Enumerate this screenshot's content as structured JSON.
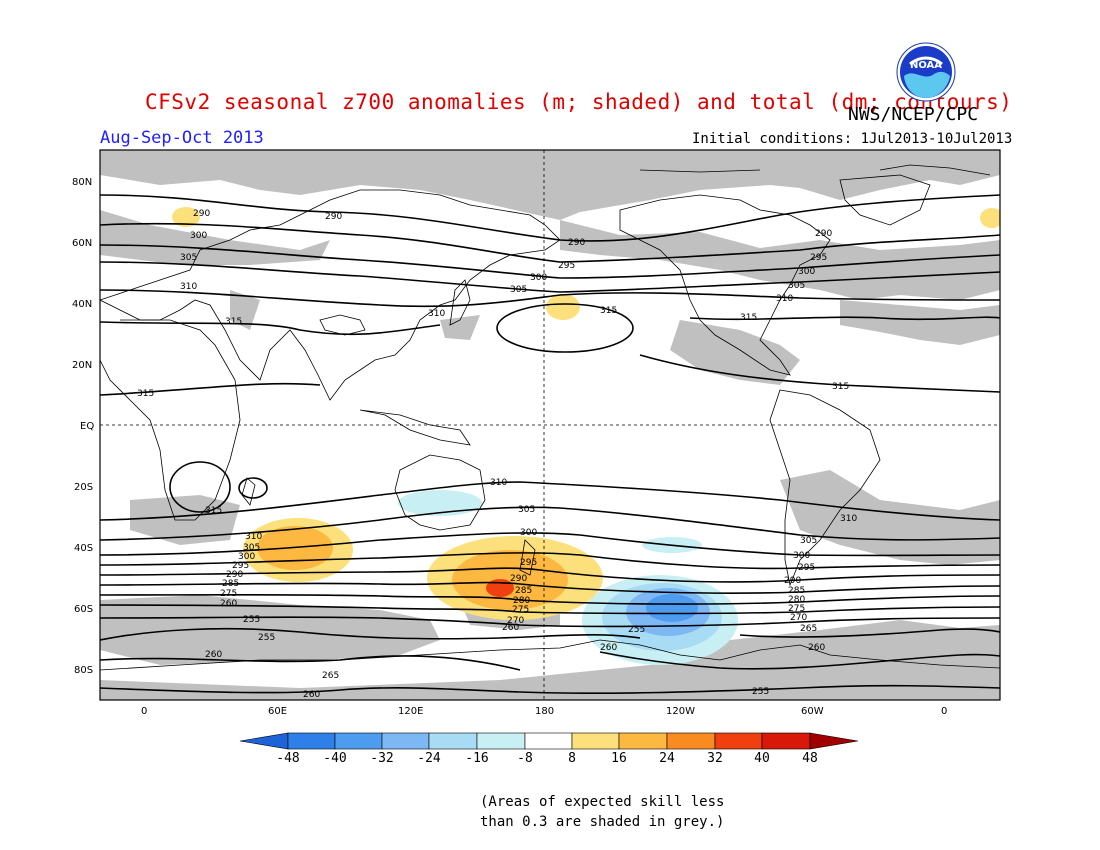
{
  "title": "CFSv2 seasonal z700 anomalies (m; shaded) and total (dm; contours)",
  "agency": "NWS/NCEP/CPC",
  "period": "Aug-Sep-Oct 2013",
  "initial_conditions": "Initial conditions: 1Jul2013-10Jul2013",
  "logo_text": "NOAA",
  "map": {
    "lon_ticks": [
      "0",
      "60E",
      "120E",
      "180",
      "120W",
      "60W",
      "0"
    ],
    "lat_ticks": [
      "80N",
      "60N",
      "40N",
      "20N",
      "EQ",
      "20S",
      "40S",
      "60S",
      "80S"
    ],
    "contour_labels": [
      "255",
      "260",
      "265",
      "270",
      "275",
      "280",
      "285",
      "290",
      "295",
      "300",
      "305",
      "310",
      "315"
    ],
    "anomaly_centers": [
      {
        "region": "Southern Ocean south of Australia/NZ",
        "sign": "positive",
        "max_approx": 32
      },
      {
        "region": "South Indian Ocean",
        "sign": "positive",
        "max_approx": 16
      },
      {
        "region": "South Pacific west of Antarctic Peninsula",
        "sign": "negative",
        "max_approx": -32
      },
      {
        "region": "North Pacific",
        "sign": "positive",
        "max_approx": 8
      },
      {
        "region": "Southern Australia",
        "sign": "negative",
        "max_approx": -8
      }
    ]
  },
  "colorbar": {
    "labels": [
      "-48",
      "-40",
      "-32",
      "-24",
      "-16",
      "-8",
      "8",
      "16",
      "24",
      "32",
      "40",
      "48"
    ],
    "colors": [
      "#1e64d8",
      "#2e80e8",
      "#4e9cf0",
      "#7eb8f4",
      "#a8dcf4",
      "#c8f0f4",
      "#ffffff",
      "#fce07c",
      "#fcb840",
      "#f88c20",
      "#f04010",
      "#d81808",
      "#a00000"
    ]
  },
  "note_line1": "(Areas of expected skill less",
  "note_line2": "than 0.3 are shaded in grey.)"
}
